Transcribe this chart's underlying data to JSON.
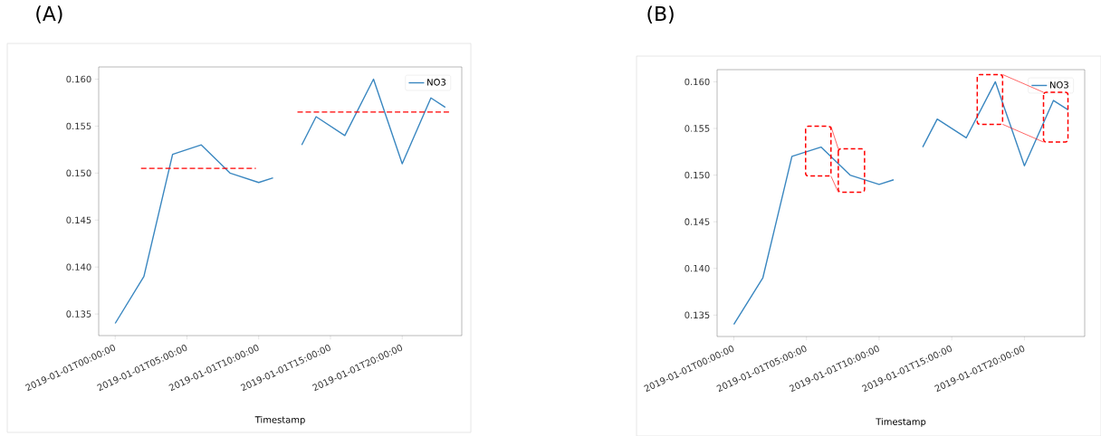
{
  "chart_data": [
    {
      "type": "line",
      "title": "(A)",
      "xlabel": "Timestamp",
      "xlim": [
        "2018-12-31T22:51",
        "2019-01-02T00:09"
      ],
      "ylim": [
        0.1327,
        0.1613
      ],
      "xticks": [
        {
          "value": "2019-01-01T00:00",
          "label": "2019-01-01T00:00:00"
        },
        {
          "value": "2019-01-01T05:00",
          "label": "2019-01-01T05:00:00"
        },
        {
          "value": "2019-01-01T10:00",
          "label": "2019-01-01T10:00:00"
        },
        {
          "value": "2019-01-01T15:00",
          "label": "2019-01-01T15:00:00"
        },
        {
          "value": "2019-01-01T20:00",
          "label": "2019-01-01T20:00:00"
        }
      ],
      "yticks": [
        {
          "value": 0.135,
          "label": "0.135"
        },
        {
          "value": 0.14,
          "label": "0.140"
        },
        {
          "value": 0.145,
          "label": "0.145"
        },
        {
          "value": 0.15,
          "label": "0.150"
        },
        {
          "value": 0.155,
          "label": "0.155"
        },
        {
          "value": 0.16,
          "label": "0.160"
        }
      ],
      "legend": "top right",
      "grid": false,
      "series": [
        {
          "name": "NO3",
          "color": "#3a87c0",
          "line_style": "solid",
          "x": [
            "2019-01-01T00:00",
            "2019-01-01T02:00",
            "2019-01-01T04:00",
            "2019-01-01T06:00",
            "2019-01-01T08:00",
            "2019-01-01T10:00",
            "2019-01-01T11:00",
            "2019-01-01T12:00",
            "2019-01-01T13:00",
            "2019-01-01T14:00",
            "2019-01-01T16:00",
            "2019-01-01T18:00",
            "2019-01-01T20:00",
            "2019-01-01T22:00",
            "2019-01-01T23:00"
          ],
          "values": [
            0.134,
            0.139,
            0.152,
            0.153,
            0.15,
            0.149,
            0.1495,
            null,
            0.153,
            0.156,
            0.154,
            0.16,
            0.151,
            0.158,
            0.157
          ]
        },
        {
          "type": "line",
          "color": "#ff0000",
          "line_style": "dashed",
          "x": [
            "2019-01-01T01:48",
            "2019-01-01T09:48"
          ],
          "values": [
            0.1505,
            0.1505
          ]
        },
        {
          "type": "line",
          "color": "#ff0000",
          "line_style": "dashed",
          "x": [
            "2019-01-01T12:42",
            "2019-01-01T23:24"
          ],
          "values": [
            0.1565,
            0.1565
          ]
        }
      ]
    },
    {
      "type": "line",
      "title": "(B)",
      "xlabel": "Timestamp",
      "xlim": [
        "2018-12-31T22:51",
        "2019-01-02T00:09"
      ],
      "ylim": [
        0.1327,
        0.1613
      ],
      "xticks": [
        {
          "value": "2019-01-01T00:00",
          "label": "2019-01-01T00:00:00"
        },
        {
          "value": "2019-01-01T05:00",
          "label": "2019-01-01T05:00:00"
        },
        {
          "value": "2019-01-01T10:00",
          "label": "2019-01-01T10:00:00"
        },
        {
          "value": "2019-01-01T15:00",
          "label": "2019-01-01T15:00:00"
        },
        {
          "value": "2019-01-01T20:00",
          "label": "2019-01-01T20:00:00"
        }
      ],
      "yticks": [
        {
          "value": 0.135,
          "label": "0.135"
        },
        {
          "value": 0.14,
          "label": "0.140"
        },
        {
          "value": 0.145,
          "label": "0.145"
        },
        {
          "value": 0.15,
          "label": "0.150"
        },
        {
          "value": 0.155,
          "label": "0.155"
        },
        {
          "value": 0.16,
          "label": "0.160"
        }
      ],
      "legend": "top right",
      "grid": false,
      "series": [
        {
          "name": "NO3",
          "color": "#3a87c0",
          "line_style": "solid",
          "x": [
            "2019-01-01T00:00",
            "2019-01-01T02:00",
            "2019-01-01T04:00",
            "2019-01-01T06:00",
            "2019-01-01T08:00",
            "2019-01-01T10:00",
            "2019-01-01T11:00",
            "2019-01-01T12:00",
            "2019-01-01T13:00",
            "2019-01-01T14:00",
            "2019-01-01T16:00",
            "2019-01-01T18:00",
            "2019-01-01T20:00",
            "2019-01-01T22:00",
            "2019-01-01T23:00"
          ],
          "values": [
            0.134,
            0.139,
            0.152,
            0.153,
            0.15,
            0.149,
            0.1495,
            null,
            0.153,
            0.156,
            0.154,
            0.16,
            0.151,
            0.158,
            0.157
          ]
        }
      ]
    }
  ]
}
